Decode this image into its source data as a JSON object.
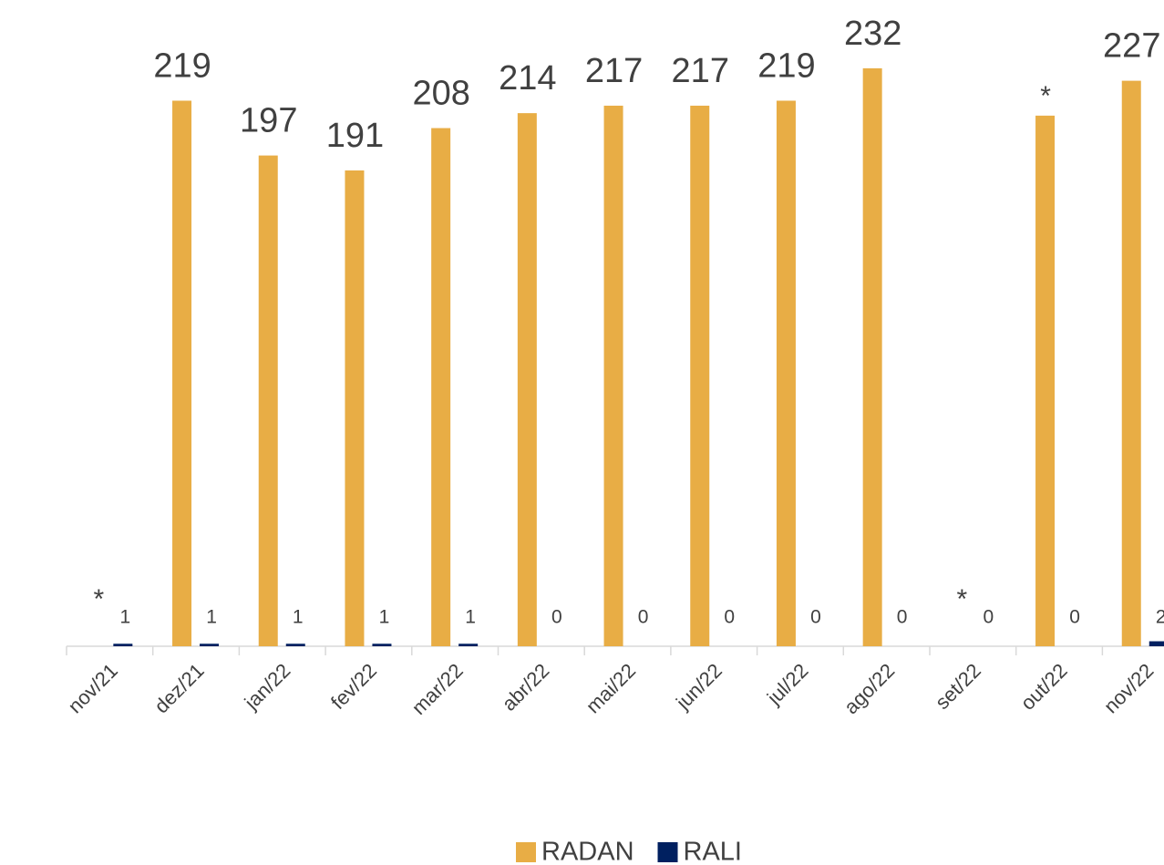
{
  "chart_data": {
    "type": "bar",
    "categories": [
      "nov/21",
      "dez/21",
      "jan/22",
      "fev/22",
      "mar/22",
      "abr/22",
      "mai/22",
      "jun/22",
      "jul/22",
      "ago/22",
      "set/22",
      "out/22",
      "nov/22"
    ],
    "series": [
      {
        "name": "RADAN",
        "color": "#e8ad45",
        "values": [
          null,
          219,
          197,
          191,
          208,
          214,
          217,
          217,
          219,
          232,
          null,
          213,
          227
        ],
        "value_labels": [
          "*",
          null,
          null,
          null,
          null,
          null,
          null,
          null,
          null,
          null,
          "*",
          "*",
          null
        ]
      },
      {
        "name": "RALI",
        "color": "#002060",
        "values": [
          1,
          1,
          1,
          1,
          1,
          0,
          0,
          0,
          0,
          0,
          0,
          0,
          2
        ]
      }
    ],
    "ylim": [
      0,
      250
    ],
    "legend": "bottom"
  }
}
